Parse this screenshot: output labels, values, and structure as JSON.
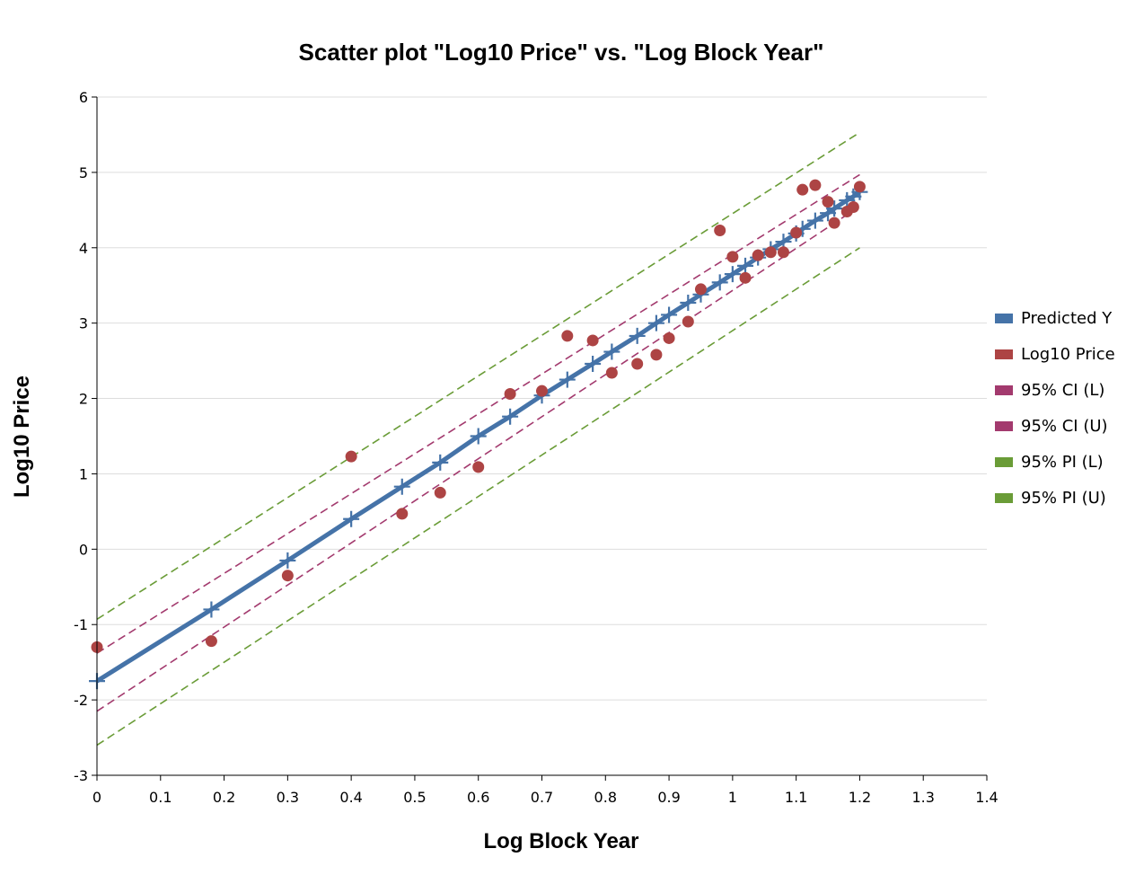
{
  "chart_data": {
    "type": "scatter",
    "title": "Scatter plot \"Log10 Price\" vs. \"Log Block Year\"",
    "xlabel": "Log Block Year",
    "ylabel": "Log10 Price",
    "xlim": [
      0,
      1.4
    ],
    "ylim": [
      -3,
      6
    ],
    "x_ticks": [
      "0",
      "0.1",
      "0.2",
      "0.3",
      "0.4",
      "0.5",
      "0.6",
      "0.7",
      "0.8",
      "0.9",
      "1",
      "1.1",
      "1.2",
      "1.3",
      "1.4"
    ],
    "y_ticks": [
      "-3",
      "-2",
      "-1",
      "0",
      "1",
      "2",
      "3",
      "4",
      "5",
      "6"
    ],
    "grid": "horizontal",
    "legend_position": "right",
    "series": [
      {
        "name": "Predicted Y",
        "kind": "line-with-markers",
        "color": "#4573a8",
        "x": [
          0,
          0.18,
          0.3,
          0.4,
          0.48,
          0.54,
          0.6,
          0.65,
          0.7,
          0.74,
          0.78,
          0.81,
          0.85,
          0.88,
          0.9,
          0.93,
          0.95,
          0.98,
          1.0,
          1.02,
          1.04,
          1.06,
          1.08,
          1.1,
          1.11,
          1.13,
          1.15,
          1.16,
          1.18,
          1.19,
          1.2
        ],
        "y": [
          -1.75,
          -0.8,
          -0.15,
          0.4,
          0.83,
          1.15,
          1.5,
          1.76,
          2.04,
          2.25,
          2.46,
          2.62,
          2.83,
          3.0,
          3.11,
          3.27,
          3.38,
          3.54,
          3.65,
          3.76,
          3.87,
          3.98,
          4.08,
          4.19,
          4.25,
          4.36,
          4.46,
          4.52,
          4.63,
          4.68,
          4.74
        ]
      },
      {
        "name": "Log10 Price",
        "kind": "scatter",
        "color": "#ad4444",
        "x": [
          0,
          0.18,
          0.3,
          0.4,
          0.48,
          0.54,
          0.6,
          0.65,
          0.7,
          0.74,
          0.78,
          0.81,
          0.85,
          0.88,
          0.9,
          0.93,
          0.95,
          0.98,
          1.0,
          1.02,
          1.04,
          1.06,
          1.08,
          1.1,
          1.11,
          1.13,
          1.15,
          1.16,
          1.18,
          1.19,
          1.2
        ],
        "y": [
          -1.3,
          -1.22,
          -0.35,
          1.23,
          0.47,
          0.75,
          1.09,
          2.06,
          2.1,
          2.83,
          2.77,
          2.34,
          2.46,
          2.58,
          2.8,
          3.02,
          3.45,
          4.23,
          3.88,
          3.6,
          3.9,
          3.94,
          3.94,
          4.2,
          4.77,
          4.83,
          4.61,
          4.33,
          4.48,
          4.54,
          4.81
        ]
      },
      {
        "name": "95% CI (L)",
        "kind": "dashed-line",
        "color": "#a33a6e",
        "x": [
          0,
          1.2
        ],
        "y": [
          -2.15,
          4.55
        ]
      },
      {
        "name": "95% CI (U)",
        "kind": "dashed-line",
        "color": "#a33a6e",
        "x": [
          0,
          1.2
        ],
        "y": [
          -1.38,
          4.97
        ]
      },
      {
        "name": "95% PI (L)",
        "kind": "dashed-line",
        "color": "#6a9c37",
        "x": [
          0,
          1.2
        ],
        "y": [
          -2.6,
          4.0
        ]
      },
      {
        "name": "95% PI (U)",
        "kind": "dashed-line",
        "color": "#6a9c37",
        "x": [
          0,
          1.2
        ],
        "y": [
          -0.93,
          5.53
        ]
      }
    ]
  }
}
